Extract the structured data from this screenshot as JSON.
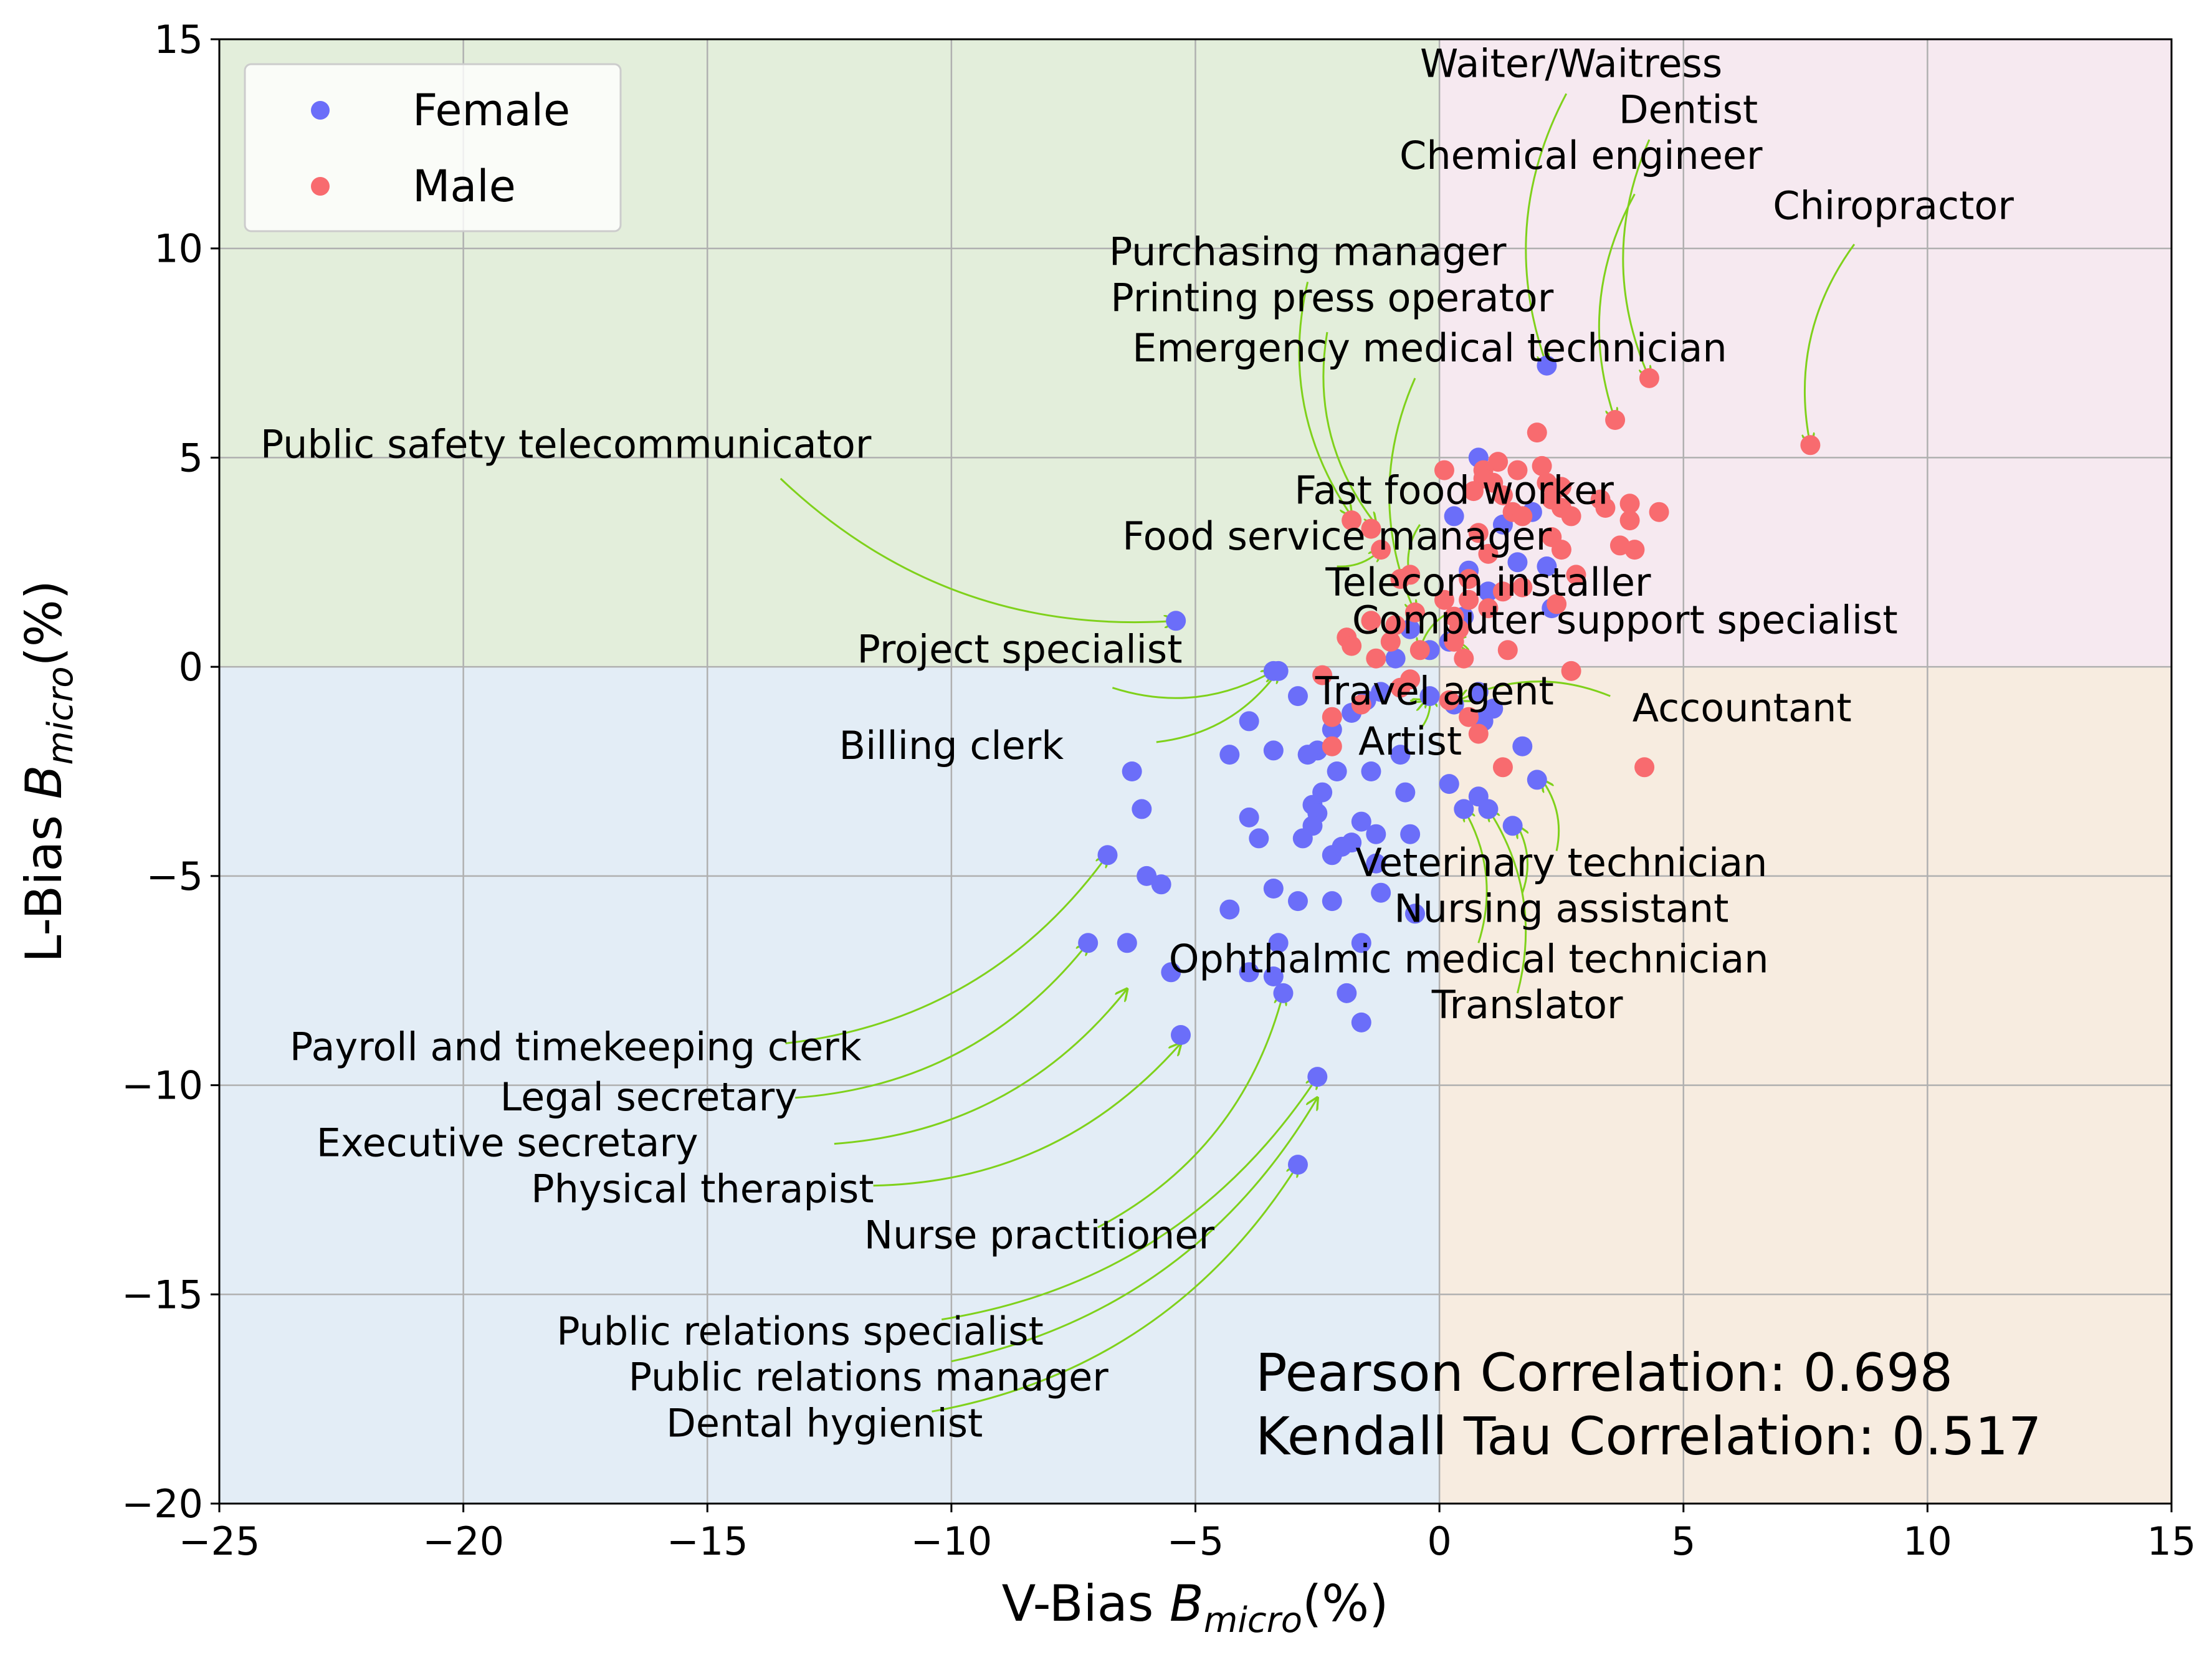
{
  "chart_data": {
    "type": "scatter",
    "xlabel": "V-Bias  B_micro(%)",
    "ylabel": "L-Bias  B_micro(%)",
    "xlabel_parts": [
      "V-Bias  ",
      "B",
      "micro",
      "(%)"
    ],
    "ylabel_parts": [
      "L-Bias  ",
      "B",
      "micro",
      "(%)"
    ],
    "xlim": [
      -25,
      15
    ],
    "ylim": [
      -20,
      15
    ],
    "xticks": [
      -25,
      -20,
      -15,
      -10,
      -5,
      0,
      5,
      10,
      15
    ],
    "yticks": [
      -20,
      -15,
      -10,
      -5,
      0,
      5,
      10,
      15
    ],
    "xtick_labels": [
      "−25",
      "−20",
      "−15",
      "−10",
      "−5",
      "0",
      "5",
      "10",
      "15"
    ],
    "ytick_labels": [
      "−20",
      "−15",
      "−10",
      "−5",
      "0",
      "5",
      "10",
      "15"
    ],
    "grid": true,
    "legend_position": "top-left",
    "quadrant_colors": {
      "top_left": "#e3eedb",
      "top_right": "#f6e9f0",
      "bottom_left": "#e3edf6",
      "bottom_right": "#f7ece0"
    },
    "annotation_arrow_color": "#7fd11b",
    "series": [
      {
        "name": "Female",
        "color": "#6b6ef9",
        "points": [
          [
            2.2,
            7.2
          ],
          [
            0.8,
            5.0
          ],
          [
            0.3,
            3.6
          ],
          [
            1.3,
            3.4
          ],
          [
            1.9,
            3.7
          ],
          [
            2.2,
            2.4
          ],
          [
            2.3,
            1.4
          ],
          [
            1.6,
            2.5
          ],
          [
            0.6,
            2.3
          ],
          [
            1.0,
            1.8
          ],
          [
            0.5,
            1.2
          ],
          [
            0.2,
            0.6
          ],
          [
            -0.2,
            0.4
          ],
          [
            -0.6,
            0.9
          ],
          [
            -0.9,
            0.2
          ],
          [
            -1.2,
            -0.6
          ],
          [
            -1.5,
            -0.8
          ],
          [
            -1.8,
            -1.1
          ],
          [
            -2.2,
            -1.5
          ],
          [
            -2.5,
            -2.0
          ],
          [
            -2.9,
            -0.7
          ],
          [
            -3.3,
            -0.1
          ],
          [
            -3.4,
            -0.1
          ],
          [
            -5.4,
            1.1
          ],
          [
            -3.9,
            -1.3
          ],
          [
            -4.3,
            -2.1
          ],
          [
            -3.4,
            -2.0
          ],
          [
            -2.7,
            -2.1
          ],
          [
            -2.1,
            -2.5
          ],
          [
            -1.4,
            -2.5
          ],
          [
            -0.8,
            -2.1
          ],
          [
            -0.2,
            -0.7
          ],
          [
            0.3,
            -0.9
          ],
          [
            0.8,
            -0.6
          ],
          [
            0.9,
            -1.3
          ],
          [
            1.1,
            -1.0
          ],
          [
            1.7,
            -1.9
          ],
          [
            2.0,
            -2.7
          ],
          [
            0.2,
            -2.8
          ],
          [
            0.5,
            -3.4
          ],
          [
            0.8,
            -3.1
          ],
          [
            1.0,
            -3.4
          ],
          [
            1.5,
            -3.8
          ],
          [
            -6.3,
            -2.5
          ],
          [
            -6.1,
            -3.4
          ],
          [
            -6.8,
            -4.5
          ],
          [
            -6.0,
            -5.0
          ],
          [
            -5.7,
            -5.2
          ],
          [
            -3.9,
            -3.6
          ],
          [
            -3.7,
            -4.1
          ],
          [
            -2.6,
            -3.3
          ],
          [
            -2.4,
            -3.0
          ],
          [
            -2.5,
            -3.5
          ],
          [
            -2.6,
            -3.8
          ],
          [
            -2.2,
            -4.5
          ],
          [
            -1.8,
            -4.2
          ],
          [
            -2.0,
            -4.3
          ],
          [
            -1.6,
            -3.7
          ],
          [
            -1.3,
            -4.0
          ],
          [
            -1.3,
            -4.7
          ],
          [
            -0.7,
            -3.0
          ],
          [
            -0.6,
            -4.0
          ],
          [
            -1.2,
            -5.4
          ],
          [
            -2.8,
            -4.1
          ],
          [
            -3.4,
            -5.3
          ],
          [
            -2.9,
            -5.6
          ],
          [
            -2.2,
            -5.6
          ],
          [
            -4.3,
            -5.8
          ],
          [
            -0.5,
            -5.9
          ],
          [
            -7.2,
            -6.6
          ],
          [
            -6.4,
            -6.6
          ],
          [
            -5.5,
            -7.3
          ],
          [
            -3.9,
            -7.3
          ],
          [
            -3.4,
            -7.4
          ],
          [
            -3.3,
            -6.6
          ],
          [
            -1.6,
            -6.6
          ],
          [
            -3.2,
            -7.8
          ],
          [
            -1.9,
            -7.8
          ],
          [
            -1.6,
            -8.5
          ],
          [
            -5.3,
            -8.8
          ],
          [
            -2.5,
            -9.8
          ],
          [
            -2.9,
            -11.9
          ]
        ]
      },
      {
        "name": "Male",
        "color": "#f86b6f",
        "points": [
          [
            7.6,
            5.3
          ],
          [
            4.3,
            6.9
          ],
          [
            3.6,
            5.9
          ],
          [
            2.0,
            5.6
          ],
          [
            1.2,
            4.9
          ],
          [
            2.1,
            4.8
          ],
          [
            0.1,
            4.7
          ],
          [
            0.9,
            4.7
          ],
          [
            1.6,
            4.7
          ],
          [
            0.9,
            4.5
          ],
          [
            1.1,
            4.4
          ],
          [
            2.2,
            4.4
          ],
          [
            2.5,
            4.3
          ],
          [
            0.7,
            4.2
          ],
          [
            1.3,
            4.1
          ],
          [
            2.3,
            4.0
          ],
          [
            3.3,
            4.0
          ],
          [
            3.9,
            3.9
          ],
          [
            1.5,
            3.7
          ],
          [
            2.5,
            3.8
          ],
          [
            3.4,
            3.8
          ],
          [
            4.5,
            3.7
          ],
          [
            1.7,
            3.6
          ],
          [
            2.7,
            3.6
          ],
          [
            3.9,
            3.5
          ],
          [
            0.8,
            3.2
          ],
          [
            2.3,
            3.1
          ],
          [
            3.7,
            2.9
          ],
          [
            4.0,
            2.8
          ],
          [
            -1.2,
            2.8
          ],
          [
            -1.8,
            3.5
          ],
          [
            -1.4,
            3.3
          ],
          [
            1.0,
            2.7
          ],
          [
            2.5,
            2.8
          ],
          [
            -0.6,
            2.2
          ],
          [
            -0.8,
            2.1
          ],
          [
            0.6,
            2.1
          ],
          [
            1.3,
            1.8
          ],
          [
            1.7,
            1.9
          ],
          [
            2.8,
            2.2
          ],
          [
            0.1,
            1.6
          ],
          [
            0.6,
            1.6
          ],
          [
            1.0,
            1.4
          ],
          [
            2.4,
            1.5
          ],
          [
            -0.5,
            1.3
          ],
          [
            0.3,
            1.2
          ],
          [
            -1.4,
            1.1
          ],
          [
            -0.9,
            1.0
          ],
          [
            0.4,
            0.9
          ],
          [
            -1.9,
            0.7
          ],
          [
            -1.0,
            0.6
          ],
          [
            -0.4,
            0.4
          ],
          [
            0.3,
            0.6
          ],
          [
            0.5,
            0.2
          ],
          [
            1.4,
            0.4
          ],
          [
            -1.8,
            0.5
          ],
          [
            -1.3,
            0.2
          ],
          [
            -0.6,
            -0.3
          ],
          [
            2.7,
            -0.1
          ],
          [
            -2.4,
            -0.2
          ],
          [
            -2.2,
            -1.2
          ],
          [
            -1.6,
            -0.9
          ],
          [
            -0.8,
            -0.5
          ],
          [
            0.2,
            -0.8
          ],
          [
            0.6,
            -1.2
          ],
          [
            0.8,
            -1.6
          ],
          [
            1.3,
            -2.4
          ],
          [
            4.2,
            -2.4
          ],
          [
            -2.2,
            -1.9
          ]
        ]
      }
    ]
  },
  "legend": {
    "items": [
      {
        "label": "Female",
        "color": "#6b6ef9"
      },
      {
        "label": "Male",
        "color": "#f86b6f"
      }
    ]
  },
  "annotations": [
    {
      "label": "Waiter/Waitress",
      "text_x": 2.7,
      "text_y": 14.1,
      "anchor": "middle",
      "target": [
        2.2,
        7.2
      ],
      "arrow_start": [
        2.6,
        13.7
      ]
    },
    {
      "label": "Dentist",
      "text_x": 5.1,
      "text_y": 13.0,
      "anchor": "middle",
      "target": [
        4.3,
        6.9
      ],
      "arrow_start": [
        4.3,
        12.6
      ]
    },
    {
      "label": "Chemical engineer",
      "text_x": 2.9,
      "text_y": 11.9,
      "anchor": "middle",
      "target": [
        3.6,
        5.9
      ],
      "arrow_start": [
        4.0,
        11.3
      ]
    },
    {
      "label": "Chiropractor",
      "text_x": 9.3,
      "text_y": 10.7,
      "anchor": "middle",
      "target": [
        7.6,
        5.3
      ],
      "arrow_start": [
        8.5,
        10.1
      ]
    },
    {
      "label": "Purchasing manager",
      "text_x": -2.7,
      "text_y": 9.6,
      "anchor": "middle",
      "target": [
        -1.8,
        3.6
      ],
      "arrow_start": [
        -2.7,
        9.2
      ]
    },
    {
      "label": "Printing press operator",
      "text_x": -2.2,
      "text_y": 8.5,
      "anchor": "middle",
      "target": [
        -1.3,
        3.4
      ],
      "arrow_start": [
        -2.3,
        8.0
      ]
    },
    {
      "label": "Emergency medical technician",
      "text_x": -0.2,
      "text_y": 7.3,
      "anchor": "middle",
      "target": [
        -0.5,
        1.3
      ],
      "arrow_start": [
        -0.5,
        6.9
      ]
    },
    {
      "label": "Public safety telecommunicator",
      "text_x": -17.9,
      "text_y": 5.0,
      "anchor": "middle",
      "target": [
        -5.4,
        1.1
      ],
      "arrow_start": [
        -13.5,
        4.5
      ]
    },
    {
      "label": "Fast food worker",
      "text_x": 0.3,
      "text_y": 3.9,
      "anchor": "middle",
      "target": [
        -0.6,
        2.1
      ],
      "arrow_start": [
        -0.4,
        3.4
      ]
    },
    {
      "label": "Food service manager",
      "text_x": -2.1,
      "text_y": 2.8,
      "anchor": "middle",
      "target": [
        -1.2,
        2.8
      ],
      "arrow_start": [
        -2.1,
        2.4
      ]
    },
    {
      "label": "Telecom installer",
      "text_x": 1.0,
      "text_y": 1.7,
      "anchor": "middle",
      "target": [
        -0.4,
        0.4
      ],
      "arrow_start": [
        0.2,
        1.3
      ]
    },
    {
      "label": "Computer support specialist",
      "text_x": 3.8,
      "text_y": 0.8,
      "anchor": "middle",
      "target": [
        0.3,
        0.6
      ],
      "arrow_start": [
        0.6,
        0.4
      ]
    },
    {
      "label": "Project specialist",
      "text_x": -8.6,
      "text_y": 0.1,
      "anchor": "middle",
      "target": [
        -3.4,
        -0.1
      ],
      "arrow_start": [
        -6.7,
        -0.5
      ]
    },
    {
      "label": "Travel agent",
      "text_x": -0.1,
      "text_y": -0.9,
      "anchor": "middle",
      "target": [
        -0.3,
        -0.8
      ],
      "arrow_start": [
        -0.6,
        -0.8
      ]
    },
    {
      "label": "Accountant",
      "text_x": 6.2,
      "text_y": -1.3,
      "anchor": "middle",
      "target": [
        0.4,
        -0.8
      ],
      "arrow_start": [
        3.5,
        -0.7
      ]
    },
    {
      "label": "Billing clerk",
      "text_x": -10.0,
      "text_y": -2.2,
      "anchor": "middle",
      "target": [
        -3.3,
        -0.1
      ],
      "arrow_start": [
        -5.8,
        -1.8
      ]
    },
    {
      "label": "Artist",
      "text_x": -0.6,
      "text_y": -2.1,
      "anchor": "middle",
      "target": [
        -0.2,
        -0.7
      ],
      "arrow_start": [
        -0.4,
        -1.5
      ]
    },
    {
      "label": "Veterinary technician",
      "text_x": 2.5,
      "text_y": -5.0,
      "anchor": "middle",
      "target": [
        2.1,
        -2.7
      ],
      "arrow_start": [
        2.4,
        -4.4
      ]
    },
    {
      "label": "Nursing assistant",
      "text_x": 2.5,
      "text_y": -6.1,
      "anchor": "middle",
      "target": [
        1.6,
        -3.8
      ],
      "arrow_start": [
        1.7,
        -5.4
      ]
    },
    {
      "label": "Ophthalmic medical technician",
      "text_x": 0.6,
      "text_y": -7.3,
      "anchor": "middle",
      "target": [
        0.5,
        -3.4
      ],
      "arrow_start": [
        0.8,
        -6.6
      ]
    },
    {
      "label": "Translator",
      "text_x": 1.8,
      "text_y": -8.4,
      "anchor": "middle",
      "target": [
        1.0,
        -3.4
      ],
      "arrow_start": [
        1.6,
        -7.8
      ]
    },
    {
      "label": "Payroll and timekeeping clerk",
      "text_x": -17.7,
      "text_y": -9.4,
      "anchor": "middle",
      "target": [
        -6.8,
        -4.5
      ],
      "arrow_start": [
        -13.4,
        -9.0
      ]
    },
    {
      "label": "Legal secretary",
      "text_x": -16.2,
      "text_y": -10.6,
      "anchor": "middle",
      "target": [
        -7.2,
        -6.6
      ],
      "arrow_start": [
        -13.2,
        -10.3
      ]
    },
    {
      "label": "Executive secretary",
      "text_x": -19.1,
      "text_y": -11.7,
      "anchor": "middle",
      "target": [
        -6.4,
        -7.7
      ],
      "arrow_start": [
        -12.4,
        -11.4
      ]
    },
    {
      "label": "Physical therapist",
      "text_x": -15.1,
      "text_y": -12.8,
      "anchor": "middle",
      "target": [
        -5.3,
        -9.0
      ],
      "arrow_start": [
        -11.6,
        -12.4
      ]
    },
    {
      "label": "Nurse practitioner",
      "text_x": -8.2,
      "text_y": -13.9,
      "anchor": "middle",
      "target": [
        -3.2,
        -7.8
      ],
      "arrow_start": [
        -7.0,
        -13.4
      ]
    },
    {
      "label": "Public relations specialist",
      "text_x": -13.1,
      "text_y": -16.2,
      "anchor": "middle",
      "target": [
        -2.5,
        -9.8
      ],
      "arrow_start": [
        -10.2,
        -15.6
      ]
    },
    {
      "label": "Public relations manager",
      "text_x": -11.7,
      "text_y": -17.3,
      "anchor": "middle",
      "target": [
        -2.5,
        -10.3
      ],
      "arrow_start": [
        -10.0,
        -16.6
      ]
    },
    {
      "label": "Dental hygienist",
      "text_x": -12.6,
      "text_y": -18.4,
      "anchor": "middle",
      "target": [
        -2.9,
        -11.9
      ],
      "arrow_start": [
        -10.4,
        -17.8
      ]
    }
  ],
  "correlations": {
    "pearson": "Pearson Correlation: 0.698",
    "kendall": "Kendall Tau Correlation: 0.517"
  }
}
